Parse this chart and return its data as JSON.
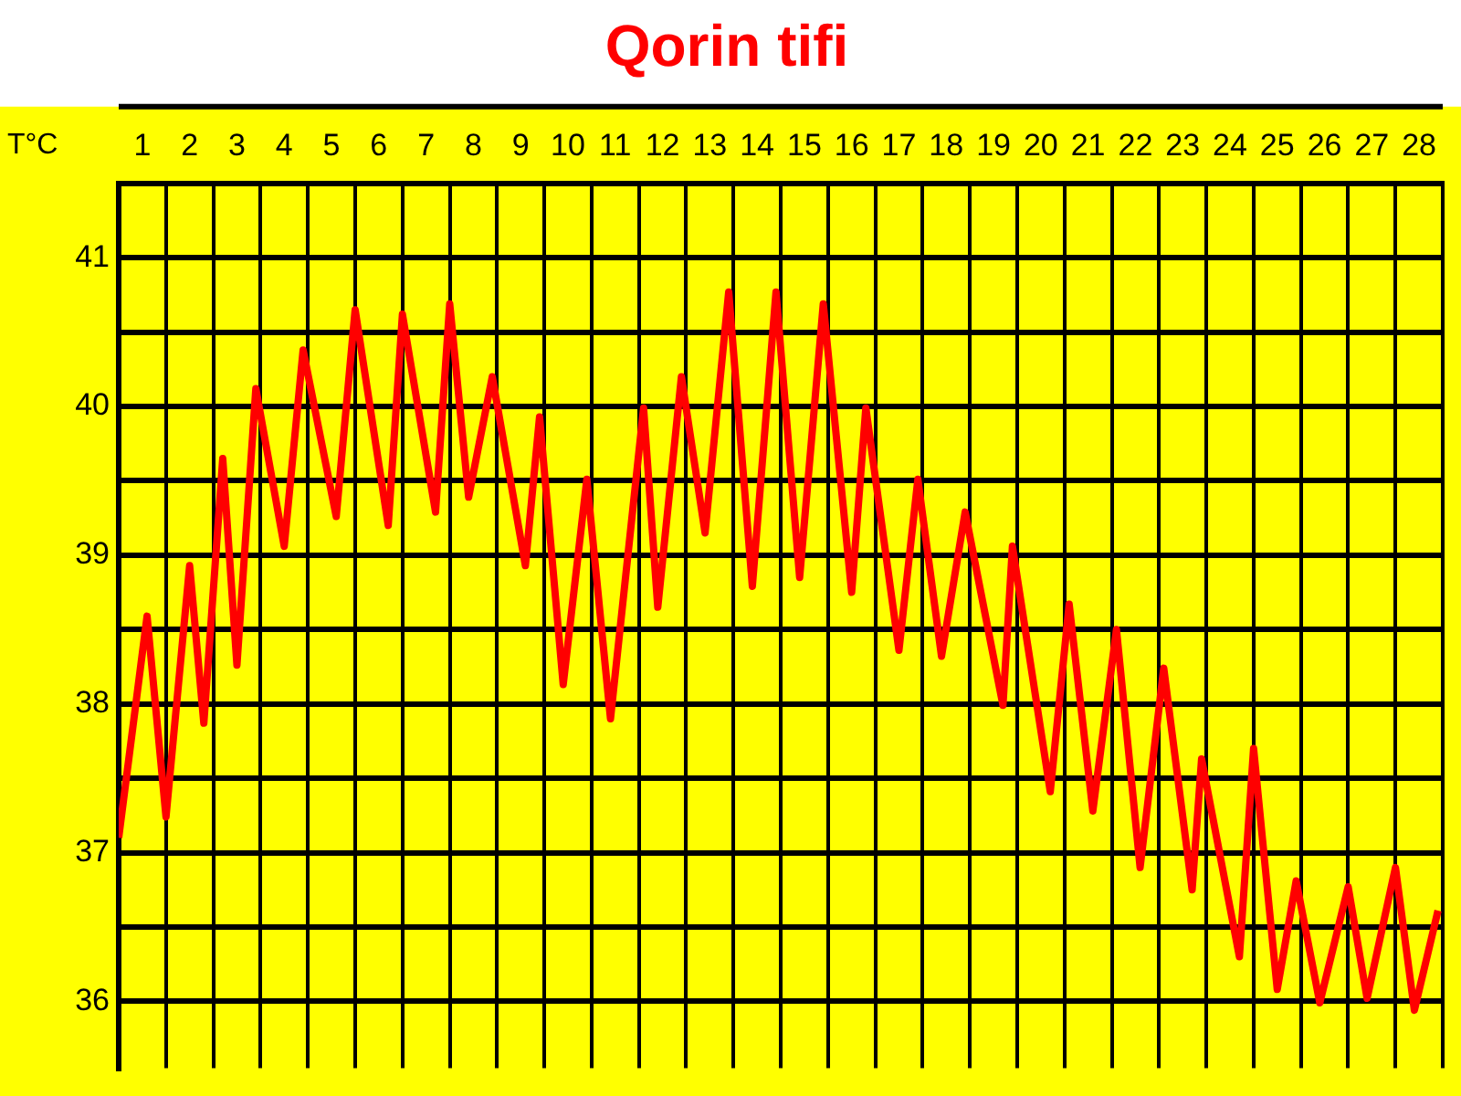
{
  "chart_data": {
    "type": "line",
    "title": "Qorin tifi",
    "ylabel": "T°C",
    "xlim": [
      0,
      28
    ],
    "xticks": [
      {
        "value": 0,
        "label": null
      },
      {
        "value": 0.5,
        "label": "1"
      },
      {
        "value": 1,
        "label": null
      },
      {
        "value": 1.5,
        "label": "2"
      },
      {
        "value": 2,
        "label": null
      },
      {
        "value": 2.5,
        "label": "3"
      },
      {
        "value": 3,
        "label": null
      },
      {
        "value": 3.5,
        "label": "4"
      },
      {
        "value": 4,
        "label": null
      },
      {
        "value": 4.5,
        "label": "5"
      },
      {
        "value": 5,
        "label": null
      },
      {
        "value": 5.5,
        "label": "6"
      },
      {
        "value": 6,
        "label": null
      },
      {
        "value": 6.5,
        "label": "7"
      },
      {
        "value": 7,
        "label": null
      },
      {
        "value": 7.5,
        "label": "8"
      },
      {
        "value": 8,
        "label": null
      },
      {
        "value": 8.5,
        "label": "9"
      },
      {
        "value": 9,
        "label": null
      },
      {
        "value": 9.5,
        "label": "10"
      },
      {
        "value": 10,
        "label": null
      },
      {
        "value": 10.5,
        "label": "11"
      },
      {
        "value": 11,
        "label": null
      },
      {
        "value": 11.5,
        "label": "12"
      },
      {
        "value": 12,
        "label": null
      },
      {
        "value": 12.5,
        "label": "13"
      },
      {
        "value": 13,
        "label": null
      },
      {
        "value": 13.5,
        "label": "14"
      },
      {
        "value": 14,
        "label": null
      },
      {
        "value": 14.5,
        "label": "15"
      },
      {
        "value": 15,
        "label": null
      },
      {
        "value": 15.5,
        "label": "16"
      },
      {
        "value": 16,
        "label": null
      },
      {
        "value": 16.5,
        "label": "17"
      },
      {
        "value": 17,
        "label": null
      },
      {
        "value": 17.5,
        "label": "18"
      },
      {
        "value": 18,
        "label": null
      },
      {
        "value": 18.5,
        "label": "19"
      },
      {
        "value": 19,
        "label": null
      },
      {
        "value": 19.5,
        "label": "20"
      },
      {
        "value": 20,
        "label": null
      },
      {
        "value": 20.5,
        "label": "21"
      },
      {
        "value": 21,
        "label": null
      },
      {
        "value": 21.5,
        "label": "22"
      },
      {
        "value": 22,
        "label": null
      },
      {
        "value": 22.5,
        "label": "23"
      },
      {
        "value": 23,
        "label": null
      },
      {
        "value": 23.5,
        "label": "24"
      },
      {
        "value": 24,
        "label": null
      },
      {
        "value": 24.5,
        "label": "25"
      },
      {
        "value": 25,
        "label": null
      },
      {
        "value": 25.5,
        "label": "26"
      },
      {
        "value": 26,
        "label": null
      },
      {
        "value": 26.5,
        "label": "27"
      },
      {
        "value": 27,
        "label": null
      },
      {
        "value": 27.5,
        "label": "28"
      },
      {
        "value": 28,
        "label": null
      }
    ],
    "ylim": [
      35.55,
      41.5
    ],
    "yticks": [
      {
        "value": 41.5,
        "label": null
      },
      41,
      {
        "value": 40.5,
        "label": null
      },
      40,
      {
        "value": 39.5,
        "label": null
      },
      39,
      {
        "value": 38.5,
        "label": null
      },
      38,
      {
        "value": 37.5,
        "label": null
      },
      37,
      {
        "value": 36.5,
        "label": null
      },
      36
    ],
    "grid": true,
    "marker": "none",
    "line_style": "solid",
    "series": [
      {
        "color": "#ff0000",
        "x": [
          0,
          0.6,
          1,
          1.5,
          1.8,
          2.2,
          2.5,
          2.9,
          3.5,
          3.9,
          4.6,
          5,
          5.7,
          6,
          6.7,
          7,
          7.4,
          7.9,
          8.6,
          8.9,
          9.4,
          9.9,
          10.4,
          11.1,
          11.4,
          11.9,
          12.4,
          12.9,
          13.4,
          13.9,
          14.4,
          14.9,
          15.5,
          15.8,
          16.5,
          16.9,
          17.4,
          17.9,
          18.7,
          18.9,
          19.7,
          20.1,
          20.6,
          21.1,
          21.6,
          22.1,
          22.7,
          22.9,
          23.7,
          24,
          24.5,
          24.9,
          25.4,
          26,
          26.4,
          27,
          27.4,
          27.9
        ],
        "values": [
          37.1,
          38.59,
          37.24,
          38.93,
          37.87,
          39.65,
          38.26,
          40.12,
          39.06,
          40.38,
          39.26,
          40.65,
          39.2,
          40.62,
          39.29,
          40.69,
          39.39,
          40.2,
          38.93,
          39.93,
          38.13,
          39.51,
          37.9,
          39.99,
          38.65,
          40.2,
          39.15,
          40.77,
          38.79,
          40.77,
          38.85,
          40.69,
          38.75,
          39.99,
          38.36,
          39.51,
          38.32,
          39.29,
          37.99,
          39.06,
          37.41,
          38.67,
          37.28,
          38.5,
          36.9,
          38.24,
          36.75,
          37.63,
          36.3,
          37.7,
          36.08,
          36.81,
          35.99,
          36.77,
          36.02,
          36.9,
          35.94,
          36.61
        ]
      }
    ]
  }
}
